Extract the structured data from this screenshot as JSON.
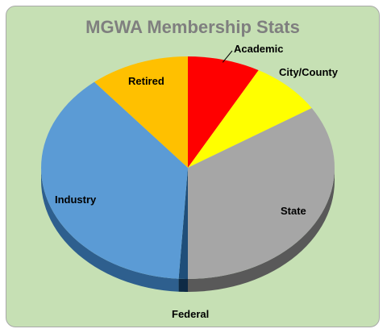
{
  "chart_data": {
    "type": "pie",
    "title": "MGWA Membership Stats",
    "start_angle_deg": 0,
    "direction": "clockwise",
    "slices": [
      {
        "label": "Academic",
        "value": 8,
        "color": "#ff0000",
        "side_color": "#a00000"
      },
      {
        "label": "City/County",
        "value": 8,
        "color": "#ffff00",
        "side_color": "#a8a800"
      },
      {
        "label": "State",
        "value": 34,
        "color": "#a6a6a6",
        "side_color": "#595959"
      },
      {
        "label": "Federal",
        "value": 1,
        "color": "#1f4e79",
        "side_color": "#0e2a45"
      },
      {
        "label": "Industry",
        "value": 38,
        "color": "#5b9bd5",
        "side_color": "#2e5f8e"
      },
      {
        "label": "Retired",
        "value": 11,
        "color": "#ffc000",
        "side_color": "#a37a00"
      }
    ]
  }
}
